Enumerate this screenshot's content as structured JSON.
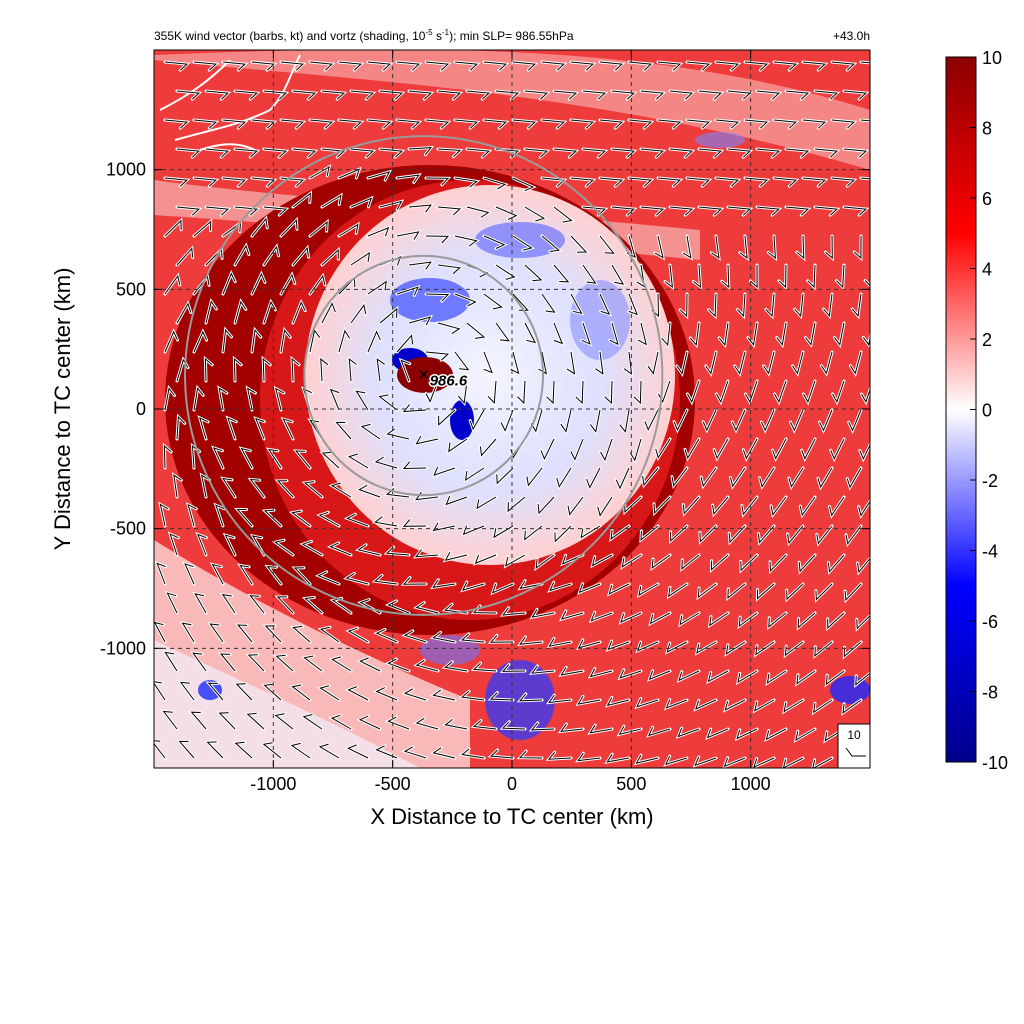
{
  "chart_data": {
    "type": "heatmap",
    "title_left_parts": {
      "a": "355K wind vector (barbs, kt) and vortz (shading, 10",
      "exp1": "-5",
      "b": " s",
      "exp2": "-1",
      "c": "); min SLP= 986.55hPa"
    },
    "title_right": "+43.0h",
    "xlabel": "X Distance to TC center (km)",
    "ylabel": "Y Distance to TC center (km)",
    "xlim": [
      -1500,
      1500
    ],
    "ylim": [
      -1500,
      1500
    ],
    "x_ticks": [
      -1000,
      -500,
      0,
      500,
      1000
    ],
    "y_ticks": [
      -1000,
      -500,
      0,
      500,
      1000
    ],
    "x_tick_labels": [
      "-1000",
      "-500",
      "0",
      "500",
      "1000"
    ],
    "y_tick_labels": [
      "-1000",
      "-500",
      "0",
      "500",
      "1000"
    ],
    "grid": true,
    "colorbar": {
      "min": -10,
      "max": 10,
      "ticks": [
        10,
        8,
        6,
        4,
        2,
        0,
        -2,
        -4,
        -6,
        -8,
        -10
      ],
      "tick_labels": [
        "10",
        "8",
        "6",
        "4",
        "2",
        "0",
        "-2",
        "-4",
        "-6",
        "-8",
        "-10"
      ],
      "colors": [
        "#00008b",
        "#0000ff",
        "#ffffff",
        "#ff0000",
        "#8b0000"
      ]
    },
    "tc_center": {
      "x": -370,
      "y": 140,
      "label": "986.6"
    },
    "range_circles_km": [
      500,
      1000
    ],
    "barb_reference": {
      "label": "10",
      "speed_kt": 10
    }
  }
}
